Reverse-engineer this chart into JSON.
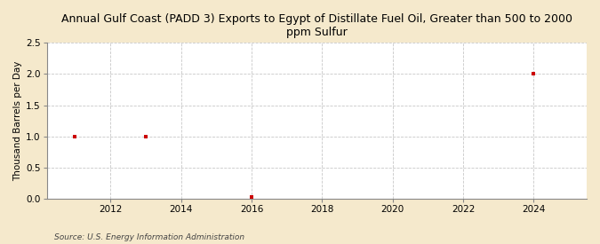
{
  "title": "Annual Gulf Coast (PADD 3) Exports to Egypt of Distillate Fuel Oil, Greater than 500 to 2000\nppm Sulfur",
  "ylabel": "Thousand Barrels per Day",
  "source": "Source: U.S. Energy Information Administration",
  "figure_bg": "#f5e9cc",
  "plot_bg": "#ffffff",
  "data_x": [
    2011,
    2013,
    2016,
    2024
  ],
  "data_y": [
    1.0,
    1.0,
    0.02,
    2.0
  ],
  "marker_color": "#cc0000",
  "marker": "s",
  "marker_size": 3.5,
  "xlim": [
    2010.2,
    2025.5
  ],
  "ylim": [
    0.0,
    2.5
  ],
  "xticks": [
    2012,
    2014,
    2016,
    2018,
    2020,
    2022,
    2024
  ],
  "yticks": [
    0.0,
    0.5,
    1.0,
    1.5,
    2.0,
    2.5
  ],
  "grid_color": "#c8c8c8",
  "grid_linestyle": "--",
  "grid_linewidth": 0.6,
  "title_fontsize": 9,
  "axis_label_fontsize": 7.5,
  "tick_fontsize": 7.5,
  "source_fontsize": 6.5,
  "spine_color": "#888888"
}
